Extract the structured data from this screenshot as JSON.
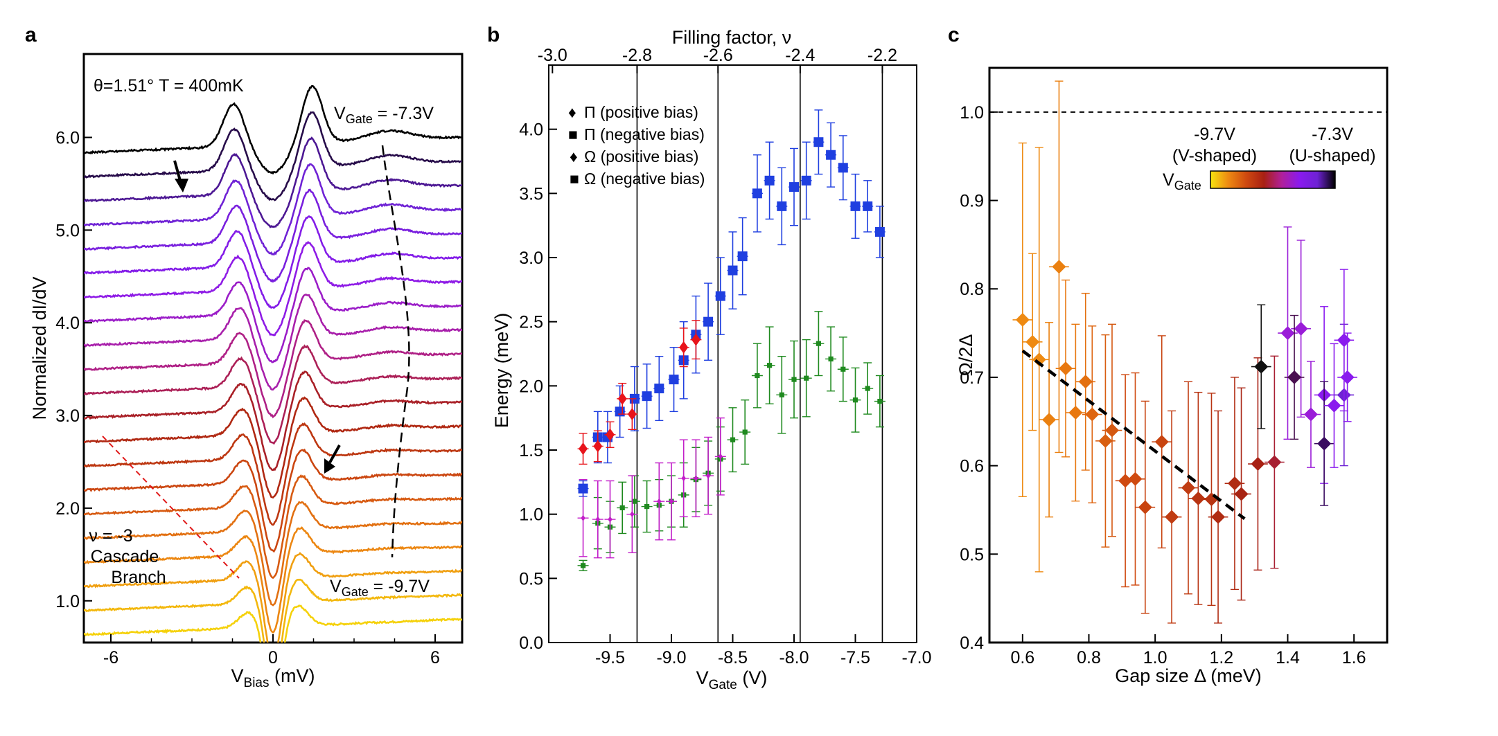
{
  "figure": {
    "panel_labels": [
      "a",
      "b",
      "c"
    ]
  },
  "chart_data": [
    {
      "panel": "a",
      "type": "line",
      "annotation": "θ=1.51° T = 400mK",
      "xlabel": "V",
      "xlabel_sub": "Bias",
      "xlabel_unit": "(mV)",
      "ylabel": "Normalized dI/dV",
      "xlim": [
        -7,
        7
      ],
      "ylim": [
        0.55,
        6.9
      ],
      "xticks": [
        -6,
        0,
        6
      ],
      "xtick_labels": [
        "-6",
        "0",
        "6"
      ],
      "yticks": [
        1.0,
        2.0,
        3.0,
        4.0,
        5.0,
        6.0
      ],
      "ytick_labels": [
        "1.0",
        "2.0",
        "3.0",
        "4.0",
        "5.0",
        "6.0"
      ],
      "top_label": "V",
      "top_label_sub": "Gate",
      "top_label_value": " = -7.3V",
      "bottom_label": "V",
      "bottom_label_sub": "Gate",
      "bottom_label_value": " = -9.7V",
      "branch_label_lines": [
        "ν = -3",
        "Cascade",
        "Branch"
      ],
      "n_curves": 21,
      "curve_offset_step": 0.26,
      "first_curve_baseline": 0.72,
      "gate_range": [
        -9.7,
        -7.3
      ],
      "colormap": [
        "#f5d10a",
        "#ee8a12",
        "#cf4a10",
        "#a82013",
        "#b0209a",
        "#8a1aee",
        "#6e22d4",
        "#000000"
      ]
    },
    {
      "panel": "b",
      "type": "scatter",
      "xlabel": "V",
      "xlabel_sub": "Gate",
      "xlabel_unit": "(V)",
      "ylabel": "Energy (meV)",
      "top_xlabel": "Filling factor, ν",
      "xlim": [
        -10.0,
        -7.0
      ],
      "ylim": [
        0.0,
        4.5
      ],
      "xticks": [
        -9.5,
        -9.0,
        -8.5,
        -8.0,
        -7.5,
        -7.0
      ],
      "xtick_labels": [
        "-9.5",
        "-9.0",
        "-8.5",
        "-8.0",
        "-7.5",
        "-7.0"
      ],
      "yticks": [
        0.0,
        0.5,
        1.0,
        1.5,
        2.0,
        2.5,
        3.0,
        3.5,
        4.0
      ],
      "ytick_labels": [
        "0.0",
        "0.5",
        "1.0",
        "1.5",
        "2.0",
        "2.5",
        "3.0",
        "3.5",
        "4.0"
      ],
      "top_ticks_vgate": [
        -9.97,
        -9.28,
        -8.62,
        -7.95,
        -7.28
      ],
      "top_tick_labels": [
        "-3.0",
        "-2.8",
        "-2.6",
        "-2.4",
        "-2.2"
      ],
      "vertical_lines": [
        -9.28,
        -8.62,
        -7.95,
        -7.28
      ],
      "legend": [
        {
          "symbol": "♦",
          "color": "#e8141b",
          "label": "Π (positive bias)"
        },
        {
          "symbol": "■",
          "color": "#1f3fe0",
          "label": "Π (negative bias)"
        },
        {
          "symbol": "♦",
          "color": "#c21ec9",
          "label": "Ω (positive bias)"
        },
        {
          "symbol": "■",
          "color": "#1f8a1f",
          "label": "Ω (negative bias)"
        }
      ],
      "series": [
        {
          "name": "Π (positive bias)",
          "color": "#e8141b",
          "marker": "diamond",
          "x": [
            -9.72,
            -9.6,
            -9.5,
            -9.4,
            -9.32,
            -8.9,
            -8.8
          ],
          "y": [
            1.51,
            1.53,
            1.62,
            1.9,
            1.78,
            2.3,
            2.36
          ],
          "err": [
            0.12,
            0.12,
            0.1,
            0.12,
            0.12,
            0.15,
            0.15
          ]
        },
        {
          "name": "Π (negative bias)",
          "color": "#1f3fe0",
          "marker": "square",
          "x": [
            -9.72,
            -9.6,
            -9.52,
            -9.42,
            -9.3,
            -9.2,
            -9.1,
            -8.98,
            -8.9,
            -8.8,
            -8.7,
            -8.6,
            -8.5,
            -8.42,
            -8.3,
            -8.2,
            -8.1,
            -8.0,
            -7.9,
            -7.8,
            -7.7,
            -7.6,
            -7.5,
            -7.4,
            -7.3
          ],
          "y": [
            1.2,
            1.6,
            1.6,
            1.8,
            1.9,
            1.92,
            1.98,
            2.05,
            2.2,
            2.4,
            2.5,
            2.7,
            2.9,
            3.01,
            3.5,
            3.6,
            3.4,
            3.55,
            3.6,
            3.9,
            3.8,
            3.7,
            3.4,
            3.4,
            3.2
          ],
          "err": [
            0.06,
            0.2,
            0.2,
            0.2,
            0.25,
            0.25,
            0.25,
            0.25,
            0.3,
            0.3,
            0.3,
            0.3,
            0.3,
            0.3,
            0.3,
            0.3,
            0.3,
            0.3,
            0.3,
            0.25,
            0.25,
            0.25,
            0.25,
            0.2,
            0.2
          ]
        },
        {
          "name": "Ω (positive bias)",
          "color": "#c21ec9",
          "marker": "diamond",
          "x": [
            -9.72,
            -9.6,
            -9.5,
            -9.32,
            -9.1,
            -9.0,
            -8.9,
            -8.8,
            -8.7,
            -8.6
          ],
          "y": [
            0.97,
            0.96,
            0.96,
            1.0,
            1.1,
            1.1,
            1.28,
            1.28,
            1.3,
            1.45
          ],
          "err": [
            0.3,
            0.3,
            0.3,
            0.3,
            0.3,
            0.3,
            0.3,
            0.3,
            0.3,
            0.3
          ]
        },
        {
          "name": "Ω (negative bias)",
          "color": "#1f8a1f",
          "marker": "square",
          "x": [
            -9.72,
            -9.6,
            -9.5,
            -9.4,
            -9.3,
            -9.2,
            -9.1,
            -9.0,
            -8.9,
            -8.8,
            -8.7,
            -8.6,
            -8.5,
            -8.4,
            -8.3,
            -8.2,
            -8.1,
            -8.0,
            -7.9,
            -7.8,
            -7.7,
            -7.6,
            -7.5,
            -7.4,
            -7.3
          ],
          "y": [
            0.6,
            0.93,
            0.9,
            1.05,
            1.1,
            1.06,
            1.07,
            1.1,
            1.15,
            1.27,
            1.32,
            1.43,
            1.58,
            1.64,
            2.08,
            2.16,
            1.93,
            2.05,
            2.06,
            2.33,
            2.21,
            2.13,
            1.89,
            1.98,
            1.88
          ],
          "err": [
            0.04,
            0.2,
            0.2,
            0.2,
            0.2,
            0.2,
            0.2,
            0.2,
            0.25,
            0.25,
            0.25,
            0.25,
            0.25,
            0.25,
            0.25,
            0.3,
            0.3,
            0.3,
            0.3,
            0.25,
            0.25,
            0.25,
            0.25,
            0.2,
            0.2
          ]
        }
      ]
    },
    {
      "panel": "c",
      "type": "scatter",
      "xlabel": "Gap size Δ (meV)",
      "ylabel": "Ω/2Δ",
      "xlim": [
        0.5,
        1.7
      ],
      "ylim": [
        0.4,
        1.05
      ],
      "xticks": [
        0.6,
        0.8,
        1.0,
        1.2,
        1.4,
        1.6
      ],
      "xtick_labels": [
        "0.6",
        "0.8",
        "1.0",
        "1.2",
        "1.4",
        "1.6"
      ],
      "yticks": [
        0.4,
        0.5,
        0.6,
        0.7,
        0.8,
        0.9,
        1.0
      ],
      "ytick_labels": [
        "0.4",
        "0.5",
        "0.6",
        "0.7",
        "0.8",
        "0.9",
        "1.0"
      ],
      "hline": 1.0,
      "colorbar": {
        "label": "V",
        "label_sub": "Gate",
        "left_value": "-9.7V",
        "left_desc": "(V-shaped)",
        "right_value": "-7.3V",
        "right_desc": "(U-shaped)",
        "colors": [
          "#f7e40f",
          "#ee8a12",
          "#cf4a10",
          "#a82013",
          "#b0209a",
          "#8a1aee",
          "#6e22d4",
          "#000000"
        ]
      },
      "fit_line": {
        "x": [
          0.6,
          1.27
        ],
        "y": [
          0.73,
          0.54
        ]
      },
      "points": [
        {
          "x": 0.6,
          "y": 0.765,
          "xerr": 0.03,
          "yerr": 0.2,
          "color": "#ee8a12"
        },
        {
          "x": 0.63,
          "y": 0.74,
          "xerr": 0.03,
          "yerr": 0.1,
          "color": "#ee8a12"
        },
        {
          "x": 0.65,
          "y": 0.72,
          "xerr": 0.03,
          "yerr": 0.24,
          "color": "#ee8a12"
        },
        {
          "x": 0.68,
          "y": 0.652,
          "xerr": 0.03,
          "yerr": 0.11,
          "color": "#ea8010"
        },
        {
          "x": 0.71,
          "y": 0.825,
          "xerr": 0.03,
          "yerr": 0.21,
          "color": "#ea8010"
        },
        {
          "x": 0.73,
          "y": 0.71,
          "xerr": 0.03,
          "yerr": 0.1,
          "color": "#e87810"
        },
        {
          "x": 0.76,
          "y": 0.66,
          "xerr": 0.03,
          "yerr": 0.1,
          "color": "#e87810"
        },
        {
          "x": 0.79,
          "y": 0.695,
          "xerr": 0.03,
          "yerr": 0.1,
          "color": "#e37010"
        },
        {
          "x": 0.81,
          "y": 0.658,
          "xerr": 0.03,
          "yerr": 0.1,
          "color": "#de6510"
        },
        {
          "x": 0.85,
          "y": 0.628,
          "xerr": 0.03,
          "yerr": 0.12,
          "color": "#d85e10"
        },
        {
          "x": 0.87,
          "y": 0.64,
          "xerr": 0.03,
          "yerr": 0.12,
          "color": "#d45810"
        },
        {
          "x": 0.91,
          "y": 0.583,
          "xerr": 0.03,
          "yerr": 0.12,
          "color": "#cf4a10"
        },
        {
          "x": 0.94,
          "y": 0.585,
          "xerr": 0.03,
          "yerr": 0.12,
          "color": "#cf4a10"
        },
        {
          "x": 0.97,
          "y": 0.553,
          "xerr": 0.03,
          "yerr": 0.12,
          "color": "#c84410"
        },
        {
          "x": 1.02,
          "y": 0.627,
          "xerr": 0.03,
          "yerr": 0.12,
          "color": "#c84410"
        },
        {
          "x": 1.05,
          "y": 0.542,
          "xerr": 0.03,
          "yerr": 0.12,
          "color": "#c03c12"
        },
        {
          "x": 1.1,
          "y": 0.575,
          "xerr": 0.03,
          "yerr": 0.12,
          "color": "#c03c12"
        },
        {
          "x": 1.13,
          "y": 0.563,
          "xerr": 0.03,
          "yerr": 0.12,
          "color": "#b83412"
        },
        {
          "x": 1.17,
          "y": 0.562,
          "xerr": 0.03,
          "yerr": 0.12,
          "color": "#b83412"
        },
        {
          "x": 1.19,
          "y": 0.542,
          "xerr": 0.03,
          "yerr": 0.12,
          "color": "#b02c13"
        },
        {
          "x": 1.24,
          "y": 0.58,
          "xerr": 0.03,
          "yerr": 0.12,
          "color": "#b02c13"
        },
        {
          "x": 1.26,
          "y": 0.568,
          "xerr": 0.03,
          "yerr": 0.12,
          "color": "#a82413"
        },
        {
          "x": 1.31,
          "y": 0.602,
          "xerr": 0.03,
          "yerr": 0.12,
          "color": "#a82013"
        },
        {
          "x": 1.36,
          "y": 0.604,
          "xerr": 0.03,
          "yerr": 0.12,
          "color": "#a82032"
        },
        {
          "x": 1.32,
          "y": 0.712,
          "xerr": 0.03,
          "yerr": 0.07,
          "color": "#111111"
        },
        {
          "x": 1.4,
          "y": 0.75,
          "xerr": 0.03,
          "yerr": 0.12,
          "color": "#9a1cd8"
        },
        {
          "x": 1.44,
          "y": 0.755,
          "xerr": 0.03,
          "yerr": 0.1,
          "color": "#9a1cd8"
        },
        {
          "x": 1.42,
          "y": 0.7,
          "xerr": 0.03,
          "yerr": 0.07,
          "color": "#4a1050"
        },
        {
          "x": 1.47,
          "y": 0.658,
          "xerr": 0.03,
          "yerr": 0.06,
          "color": "#9a1cd8"
        },
        {
          "x": 1.51,
          "y": 0.68,
          "xerr": 0.03,
          "yerr": 0.1,
          "color": "#8a1aee"
        },
        {
          "x": 1.51,
          "y": 0.625,
          "xerr": 0.03,
          "yerr": 0.07,
          "color": "#3a0c60"
        },
        {
          "x": 1.54,
          "y": 0.668,
          "xerr": 0.03,
          "yerr": 0.07,
          "color": "#8a1aee"
        },
        {
          "x": 1.57,
          "y": 0.68,
          "xerr": 0.03,
          "yerr": 0.08,
          "color": "#6e22d4"
        },
        {
          "x": 1.57,
          "y": 0.742,
          "xerr": 0.03,
          "yerr": 0.08,
          "color": "#8a1aee"
        },
        {
          "x": 1.58,
          "y": 0.7,
          "xerr": 0.03,
          "yerr": 0.05,
          "color": "#8a1aee"
        }
      ]
    }
  ]
}
